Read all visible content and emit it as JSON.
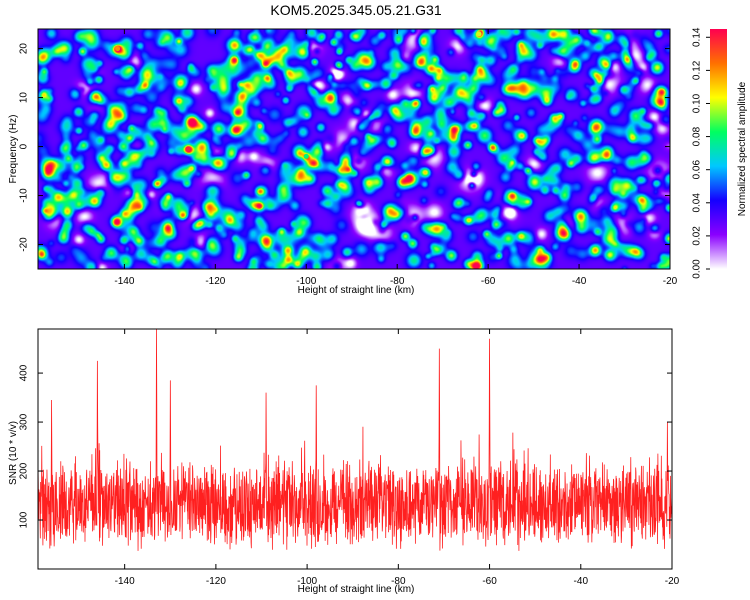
{
  "title": "KOM5.2025.345.05.21.G31",
  "chart_data": [
    {
      "type": "heatmap",
      "xlabel": "Height of straight line (km)",
      "ylabel": "Frequency (Hz)",
      "xlim": [
        -159,
        -20
      ],
      "ylim": [
        -25,
        24
      ],
      "x_ticks": [
        -140,
        -120,
        -100,
        -80,
        -60,
        -40,
        -20
      ],
      "x_tick_labels": [
        "-140",
        "-120",
        "-100",
        "-80",
        "-60",
        "-40",
        "-20"
      ],
      "y_ticks": [
        -20,
        -10,
        0,
        10,
        20
      ],
      "y_tick_labels": [
        "-20",
        "-10",
        "0",
        "10",
        "20"
      ],
      "colorbar": {
        "label": "Normalized spectral amplitude",
        "range": [
          0,
          0.145
        ],
        "ticks": [
          0,
          0.02,
          0.04,
          0.06,
          0.08,
          0.1,
          0.12,
          0.14
        ],
        "tick_labels": [
          "0.00",
          "0.02",
          "0.04",
          "0.06",
          "0.08",
          "0.10",
          "0.12",
          "0.14"
        ],
        "colors": [
          "#ffffff",
          "#8a00ff",
          "#1500ff",
          "#00c8ff",
          "#00ff60",
          "#ffff00",
          "#ff7000",
          "#ff0050"
        ]
      },
      "hotspots": [
        {
          "x": -141.5,
          "y": 20,
          "value": 0.12
        },
        {
          "x": -126,
          "y": -0.5,
          "value": 0.14
        },
        {
          "x": -100,
          "y": -2,
          "value": 0.08
        },
        {
          "x": -62,
          "y": 23,
          "value": 0.1
        }
      ]
    },
    {
      "type": "line",
      "xlabel": "Height of straight line (km)",
      "ylabel": "SNR (10 * v/v)",
      "xlim": [
        -159,
        -20
      ],
      "ylim": [
        0,
        490
      ],
      "x_ticks": [
        -140,
        -120,
        -100,
        -80,
        -60,
        -40,
        -20
      ],
      "x_tick_labels": [
        "-140",
        "-120",
        "-100",
        "-80",
        "-60",
        "-40",
        "-20"
      ],
      "y_ticks": [
        100,
        200,
        300,
        400
      ],
      "y_tick_labels": [
        "100",
        "200",
        "300",
        "400"
      ],
      "color": "#ff2020",
      "baseline": 130,
      "peaks": [
        {
          "x": -133,
          "y": 490
        },
        {
          "x": -60,
          "y": 470
        },
        {
          "x": -71,
          "y": 450
        },
        {
          "x": -146,
          "y": 425
        },
        {
          "x": -109,
          "y": 360
        },
        {
          "x": -130,
          "y": 385
        },
        {
          "x": -98,
          "y": 375
        },
        {
          "x": -156,
          "y": 345
        },
        {
          "x": -21,
          "y": 300
        }
      ]
    }
  ]
}
